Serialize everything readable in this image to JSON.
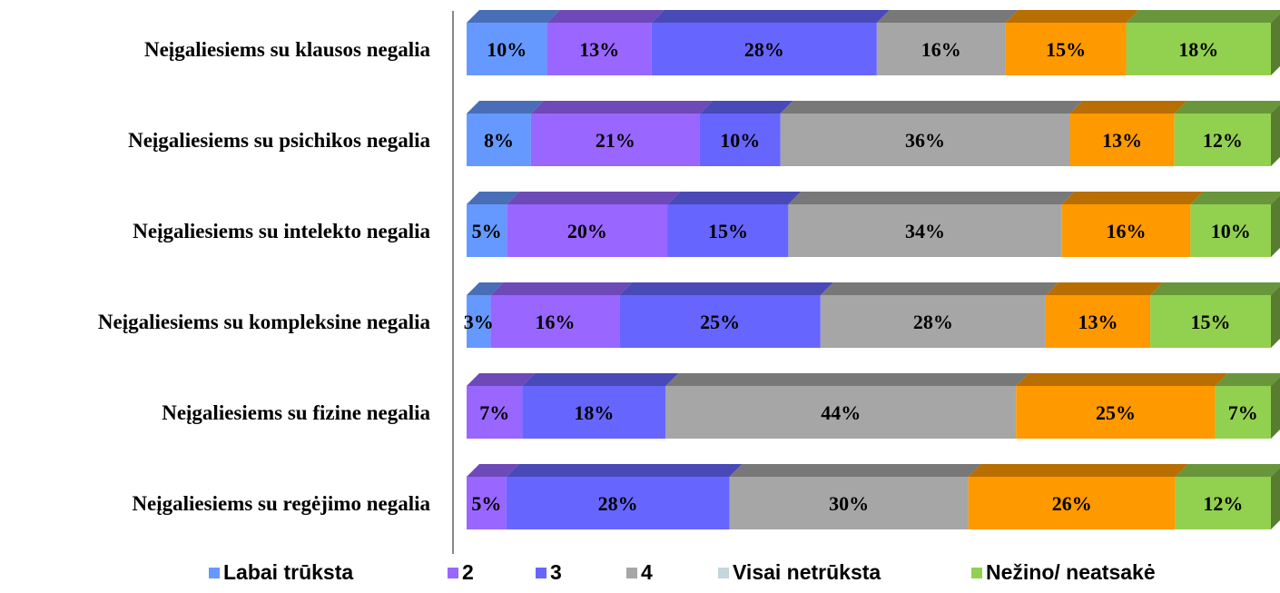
{
  "chart_data": {
    "type": "bar",
    "orientation": "horizontal",
    "stacked": "percent",
    "style": "3d",
    "categories": [
      "Neįgaliesiems su klausos negalia",
      "Neįgaliesiems su psichikos negalia",
      "Neįgaliesiems su intelekto negalia",
      "Neįgaliesiems su kompleksine negalia",
      "Neįgaliesiems su fizine negalia",
      "Neįgaliesiems su regėjimo negalia"
    ],
    "series": [
      {
        "name": "Labai trūksta",
        "color": "#6699ff",
        "values": [
          10,
          8,
          5,
          3,
          0,
          0
        ]
      },
      {
        "name": "2",
        "color": "#9966ff",
        "values": [
          13,
          21,
          20,
          16,
          7,
          5
        ]
      },
      {
        "name": "3",
        "color": "#6666ff",
        "values": [
          28,
          10,
          15,
          25,
          18,
          28
        ]
      },
      {
        "name": "4",
        "color": "#a6a6a6",
        "values": [
          16,
          36,
          34,
          28,
          44,
          30
        ]
      },
      {
        "name": "Visai netrūksta",
        "color": "#ff9900",
        "legend_color": "#c5d6dc",
        "values": [
          15,
          13,
          16,
          13,
          25,
          26
        ]
      },
      {
        "name": "Nežino/ neatsakė",
        "color": "#92d050",
        "values": [
          18,
          12,
          10,
          15,
          7,
          12
        ]
      }
    ],
    "value_labels": [
      [
        "10%",
        "13%",
        "28%",
        "16%",
        "15%",
        "18%"
      ],
      [
        "8%",
        "21%",
        "10%",
        "36%",
        "13%",
        "12%"
      ],
      [
        "5%",
        "20%",
        "15%",
        "34%",
        "16%",
        "10%"
      ],
      [
        "3%",
        "16%",
        "25%",
        "28%",
        "13%",
        "15%"
      ],
      [
        "",
        "7%",
        "18%",
        "44%",
        "25%",
        "7%"
      ],
      [
        "",
        "5%",
        "28%",
        "30%",
        "26%",
        "12%"
      ]
    ],
    "legend_position": "bottom",
    "xlim": [
      0,
      100
    ],
    "grid": false
  }
}
